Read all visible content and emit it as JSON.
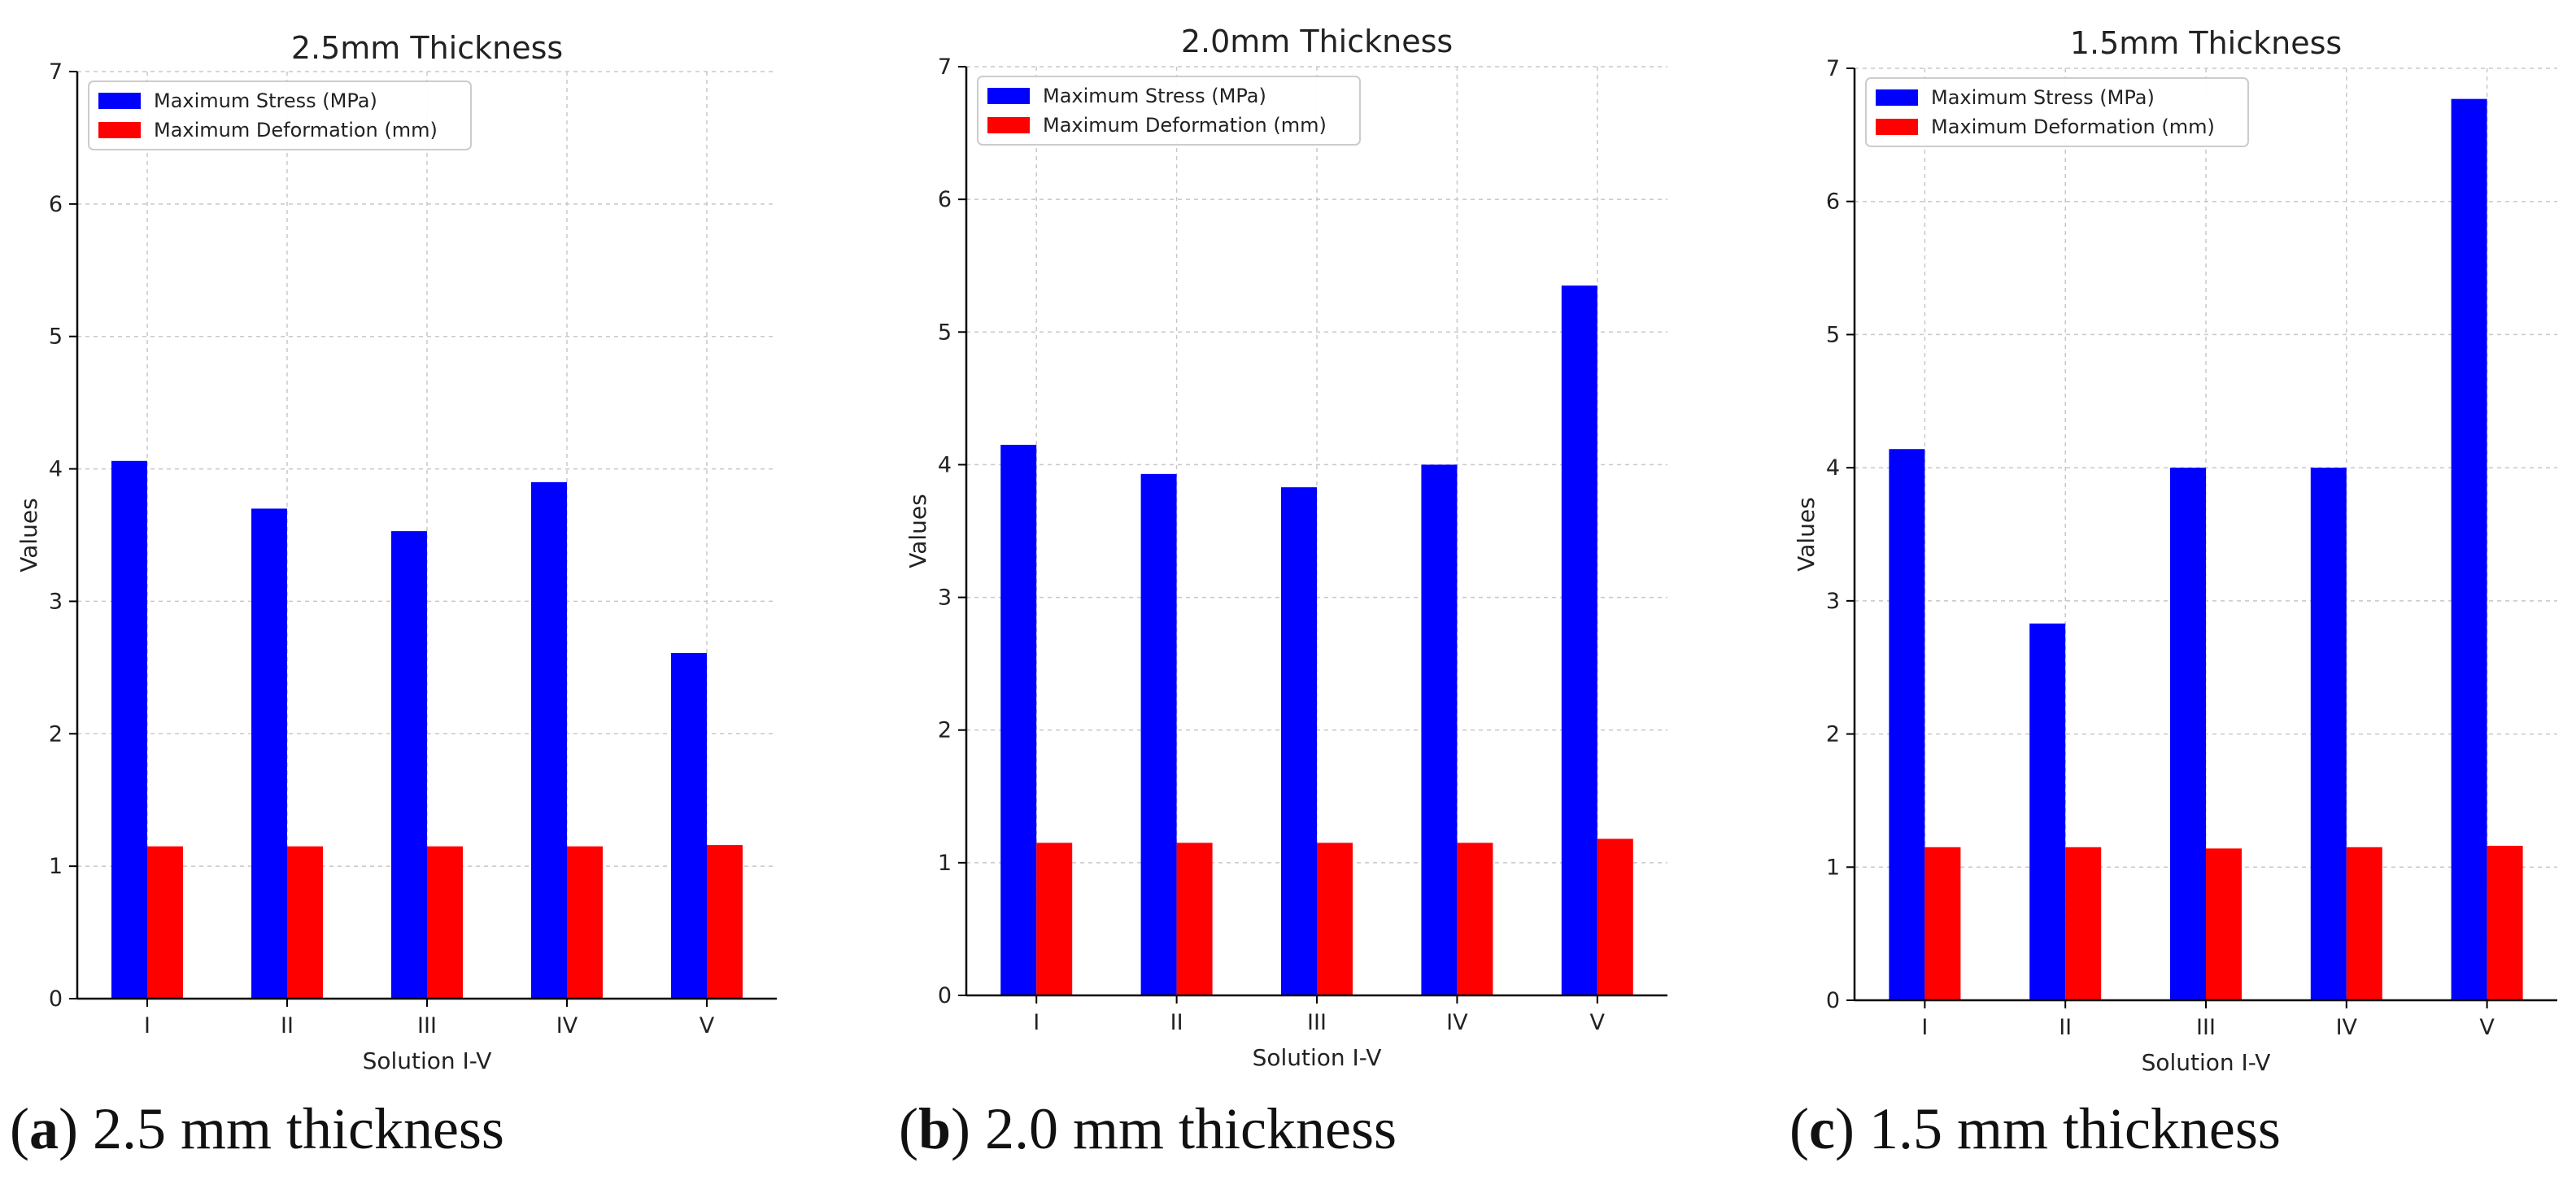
{
  "chart_data": [
    {
      "type": "bar",
      "title": "2.5mm Thickness",
      "xlabel": "Solution I-V",
      "ylabel": "Values",
      "ylim": [
        0,
        7
      ],
      "yticks": [
        "0",
        "1",
        "2",
        "3",
        "4",
        "5",
        "6",
        "7"
      ],
      "grid": true,
      "legend_position": "top-left",
      "categories": [
        "I",
        "II",
        "III",
        "IV",
        "V"
      ],
      "series": [
        {
          "name": "Maximum Stress (MPa)",
          "color": "#0000ff",
          "values": [
            4.06,
            3.7,
            3.53,
            3.9,
            2.61
          ]
        },
        {
          "name": "Maximum Deformation (mm)",
          "color": "#ff0000",
          "values": [
            1.15,
            1.15,
            1.15,
            1.15,
            1.16
          ]
        }
      ],
      "caption": {
        "letter": "a",
        "text": "2.5 mm thickness"
      }
    },
    {
      "type": "bar",
      "title": "2.0mm Thickness",
      "xlabel": "Solution I-V",
      "ylabel": "Values",
      "ylim": [
        0,
        7
      ],
      "yticks": [
        "0",
        "1",
        "2",
        "3",
        "4",
        "5",
        "6",
        "7"
      ],
      "grid": true,
      "legend_position": "top-left",
      "categories": [
        "I",
        "II",
        "III",
        "IV",
        "V"
      ],
      "series": [
        {
          "name": "Maximum Stress (MPa)",
          "color": "#0000ff",
          "values": [
            4.15,
            3.93,
            3.83,
            4.0,
            5.35
          ]
        },
        {
          "name": "Maximum Deformation (mm)",
          "color": "#ff0000",
          "values": [
            1.15,
            1.15,
            1.15,
            1.15,
            1.18
          ]
        }
      ],
      "caption": {
        "letter": "b",
        "text": "2.0 mm thickness"
      }
    },
    {
      "type": "bar",
      "title": "1.5mm Thickness",
      "xlabel": "Solution I-V",
      "ylabel": "Values",
      "ylim": [
        0,
        7
      ],
      "yticks": [
        "0",
        "1",
        "2",
        "3",
        "4",
        "5",
        "6",
        "7"
      ],
      "grid": true,
      "legend_position": "top-left",
      "categories": [
        "I",
        "II",
        "III",
        "IV",
        "V"
      ],
      "series": [
        {
          "name": "Maximum Stress (MPa)",
          "color": "#0000ff",
          "values": [
            4.14,
            2.83,
            4.0,
            4.0,
            6.77
          ]
        },
        {
          "name": "Maximum Deformation (mm)",
          "color": "#ff0000",
          "values": [
            1.15,
            1.15,
            1.14,
            1.15,
            1.16
          ]
        }
      ],
      "caption": {
        "letter": "c",
        "text": "1.5 mm thickness"
      }
    }
  ]
}
